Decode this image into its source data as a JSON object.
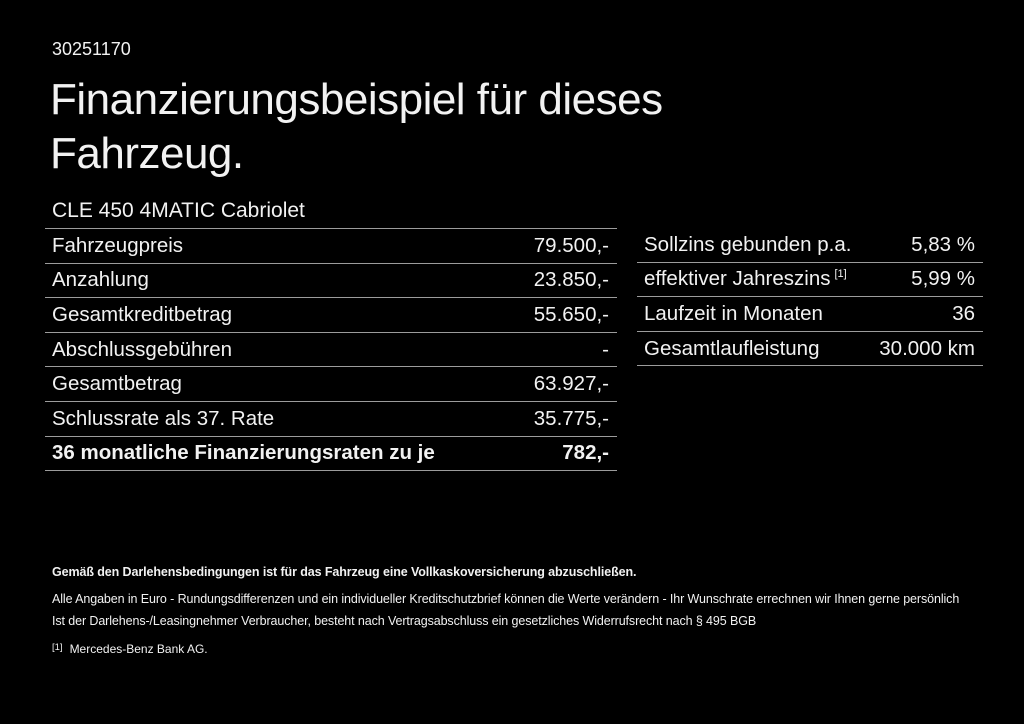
{
  "colors": {
    "background": "#000000",
    "text": "#f2f2f2",
    "divider": "#9c9c9c"
  },
  "document": {
    "doc_number": "30251170",
    "title_line1": "Finanzierungsbeispiel für dieses",
    "title_line2": "Fahrzeug.",
    "model": "CLE 450 4MATIC Cabriolet"
  },
  "left_table": {
    "rows": [
      {
        "label": "Fahrzeugpreis",
        "value": "79.500,-",
        "bold": false
      },
      {
        "label": "Anzahlung",
        "value": "23.850,-",
        "bold": false
      },
      {
        "label": "Gesamtkreditbetrag",
        "value": "55.650,-",
        "bold": false
      },
      {
        "label": "Abschlussgebühren",
        "value": "-",
        "bold": false
      },
      {
        "label": "Gesamtbetrag",
        "value": "63.927,-",
        "bold": false
      },
      {
        "label": "Schlussrate als 37. Rate",
        "value": "35.775,-",
        "bold": false
      },
      {
        "label": "36 monatliche Finanzierungsraten zu je",
        "value": "782,-",
        "bold": true
      }
    ]
  },
  "right_table": {
    "rows": [
      {
        "label": "Sollzins gebunden p.a.",
        "value": "5,83 %",
        "bold": false
      },
      {
        "label": "effektiver Jahreszins",
        "label_sup": "[1]",
        "value": "5,99 %",
        "bold": false
      },
      {
        "label": "Laufzeit in Monaten",
        "value": "36",
        "bold": false
      },
      {
        "label": "Gesamtlaufleistung",
        "value": "30.000 km",
        "bold": false
      }
    ]
  },
  "footer": {
    "bold_note": "Gemäß den Darlehensbedingungen ist für das Fahrzeug eine Vollkaskoversicherung abzuschließen.",
    "note_line1": "Alle Angaben in Euro - Rundungsdifferenzen und ein individueller Kreditschutzbrief können die Werte verändern - Ihr Wunschrate errechnen wir Ihnen gerne persönlich",
    "note_line2": "Ist der Darlehens-/Leasingnehmer Verbraucher, besteht nach Vertragsabschluss ein gesetzliches Widerrufsrecht nach § 495 BGB",
    "footnote_marker": "[1]",
    "footnote_text": "Mercedes-Benz Bank AG."
  }
}
